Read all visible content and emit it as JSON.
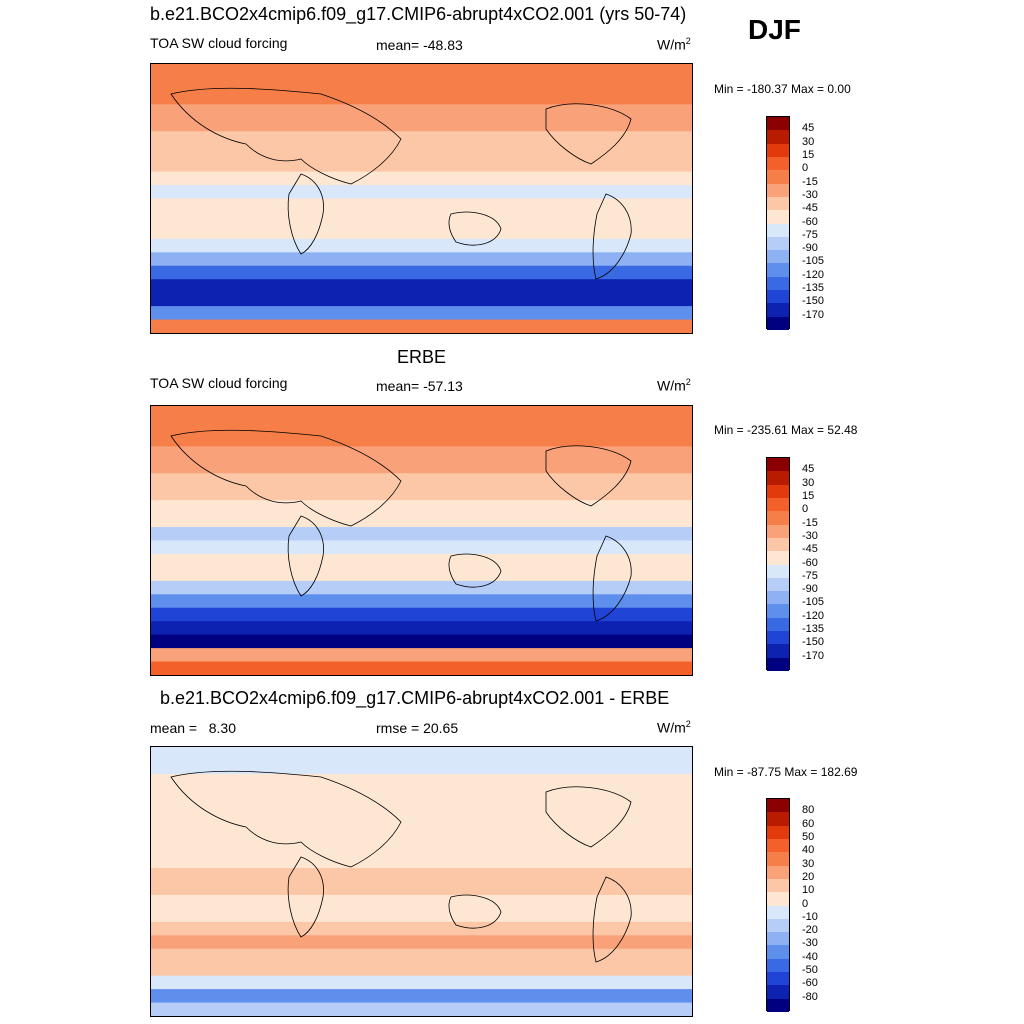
{
  "season": "DJF",
  "chart_data": [
    {
      "type": "heatmap",
      "title": "b.e21.BCO2x4cmip6.f09_g17.CMIP6-abrupt4xCO2.001 (yrs 50-74)",
      "left_label": "TOA SW cloud forcing",
      "center_label": "mean= -48.83",
      "units": "W/m",
      "units_sup": "2",
      "minmax": "Min = -180.37 Max =   0.00",
      "colorbar_levels": [
        "45",
        "30",
        "15",
        "0",
        "-15",
        "-30",
        "-45",
        "-60",
        "-75",
        "-90",
        "-105",
        "-120",
        "-135",
        "-150",
        "-170"
      ],
      "colorbar_colors": [
        "#8b0000",
        "#b81b00",
        "#e33a0c",
        "#f4602a",
        "#f57e49",
        "#f9a178",
        "#fcc7a6",
        "#fde6d2",
        "#d9e7fb",
        "#b5cdf7",
        "#8eb1f3",
        "#5f8fec",
        "#3a6ae3",
        "#1f44d6",
        "#0d22b0",
        "#000080"
      ],
      "zonal_means": [
        -10,
        -10,
        -12,
        -18,
        -28,
        -35,
        -40,
        -45,
        -55,
        -65,
        -58,
        -50,
        -60,
        -75,
        -100,
        -130,
        -155,
        -160,
        -120,
        -10
      ]
    },
    {
      "type": "heatmap",
      "title": "ERBE",
      "left_label": "TOA SW cloud forcing",
      "center_label": "mean= -57.13",
      "units": "W/m",
      "units_sup": "2",
      "minmax": "Min = -235.61 Max =  52.48",
      "colorbar_levels": [
        "45",
        "30",
        "15",
        "0",
        "-15",
        "-30",
        "-45",
        "-60",
        "-75",
        "-90",
        "-105",
        "-120",
        "-135",
        "-150",
        "-170"
      ],
      "colorbar_colors": [
        "#8b0000",
        "#b81b00",
        "#e33a0c",
        "#f4602a",
        "#f57e49",
        "#f9a178",
        "#fcc7a6",
        "#fde6d2",
        "#d9e7fb",
        "#b5cdf7",
        "#8eb1f3",
        "#5f8fec",
        "#3a6ae3",
        "#1f44d6",
        "#0d22b0",
        "#000080"
      ],
      "zonal_means": [
        -5,
        -8,
        -15,
        -20,
        -30,
        -38,
        -42,
        -48,
        -60,
        -80,
        -70,
        -55,
        -58,
        -85,
        -120,
        -150,
        -165,
        -175,
        -20,
        5
      ]
    },
    {
      "type": "heatmap",
      "title": "b.e21.BCO2x4cmip6.f09_g17.CMIP6-abrupt4xCO2.001 - ERBE",
      "left_label": "mean =   8.30",
      "center_label": "rmse =  20.65",
      "units": "W/m",
      "units_sup": "2",
      "minmax": "Min = -87.75 Max = 182.69",
      "colorbar_levels": [
        "80",
        "60",
        "50",
        "40",
        "30",
        "20",
        "10",
        "0",
        "-10",
        "-20",
        "-30",
        "-40",
        "-50",
        "-60",
        "-80"
      ],
      "colorbar_colors": [
        "#8b0000",
        "#b81b00",
        "#e33a0c",
        "#f4602a",
        "#f57e49",
        "#f9a178",
        "#fcc7a6",
        "#fde6d2",
        "#d9e7fb",
        "#b5cdf7",
        "#8eb1f3",
        "#5f8fec",
        "#3a6ae3",
        "#1f44d6",
        "#0d22b0",
        "#000080"
      ],
      "zonal_means": [
        -8,
        -6,
        3,
        5,
        2,
        4,
        2,
        5,
        8,
        15,
        10,
        6,
        2,
        10,
        20,
        18,
        12,
        -10,
        -40,
        -15
      ]
    }
  ]
}
